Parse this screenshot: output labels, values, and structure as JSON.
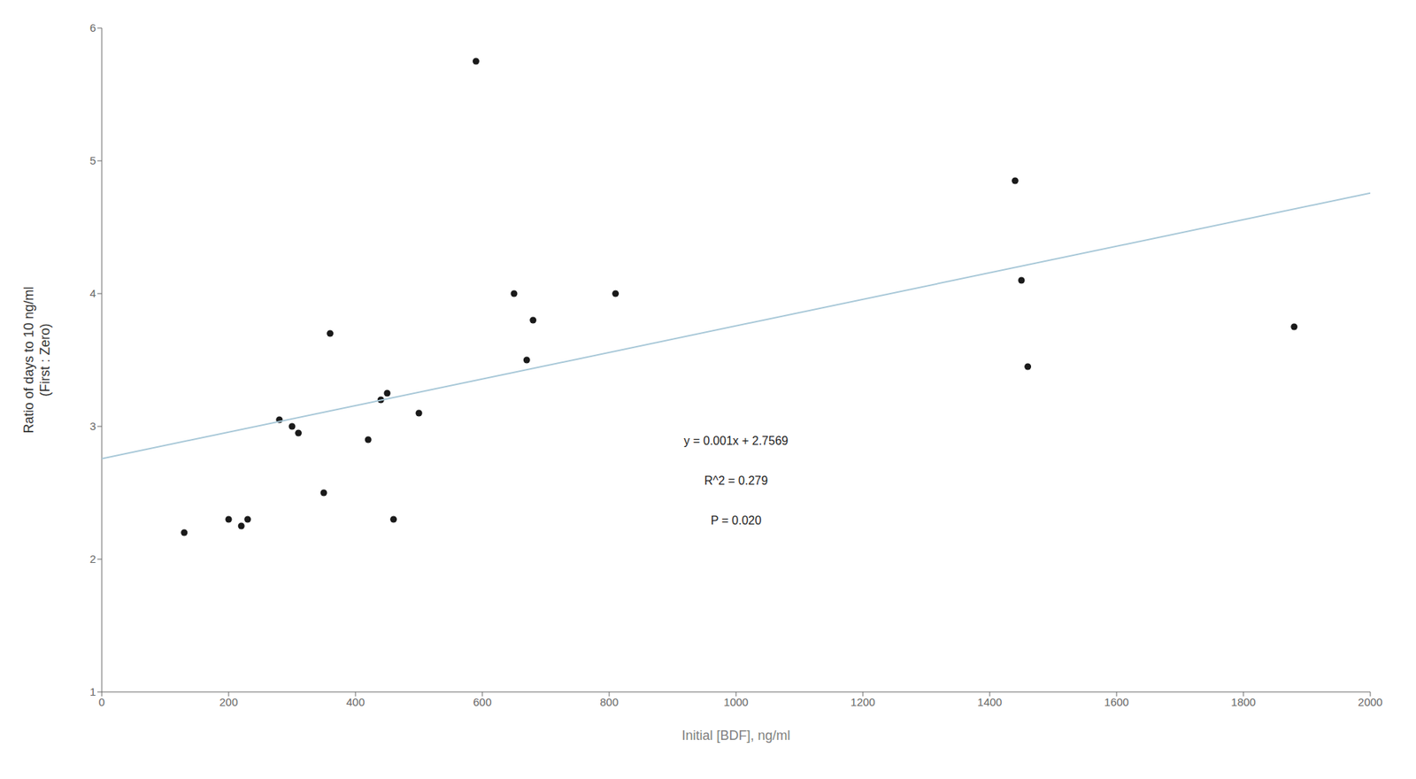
{
  "chart_data": {
    "type": "scatter",
    "xlabel": "Initial [BDF], ng/ml",
    "ylabel": "Ratio of days to 10 ng/ml\n(First : Zero)",
    "xlim": [
      0,
      2000
    ],
    "ylim": [
      1,
      6
    ],
    "xticks": [
      0,
      200,
      400,
      600,
      800,
      1000,
      1200,
      1400,
      1600,
      1800,
      2000
    ],
    "yticks": [
      1,
      2,
      3,
      4,
      5,
      6
    ],
    "grid": false,
    "series": [
      {
        "type": "scatter",
        "color": "#1a1a1a",
        "x": [
          130,
          200,
          220,
          230,
          280,
          300,
          310,
          350,
          360,
          420,
          440,
          450,
          460,
          500,
          590,
          650,
          670,
          680,
          810,
          1440,
          1450,
          1460,
          1880
        ],
        "values": [
          2.2,
          2.3,
          2.25,
          2.3,
          3.05,
          3.0,
          2.95,
          2.5,
          3.7,
          2.9,
          3.2,
          3.25,
          2.3,
          3.1,
          5.75,
          4.0,
          3.5,
          3.8,
          4.0,
          4.85,
          4.1,
          3.45,
          3.75
        ]
      },
      {
        "type": "line",
        "color": "#a8c8d8",
        "x": [
          0,
          2000
        ],
        "values": [
          2.7569,
          4.7569
        ]
      }
    ],
    "annotations": [
      {
        "text": "y = 0.001x + 2.7569",
        "x": 1000,
        "y": 2.85
      },
      {
        "text": "R^2 = 0.279",
        "x": 1000,
        "y": 2.55
      },
      {
        "text": "P = 0.020",
        "x": 1000,
        "y": 2.25
      }
    ]
  }
}
